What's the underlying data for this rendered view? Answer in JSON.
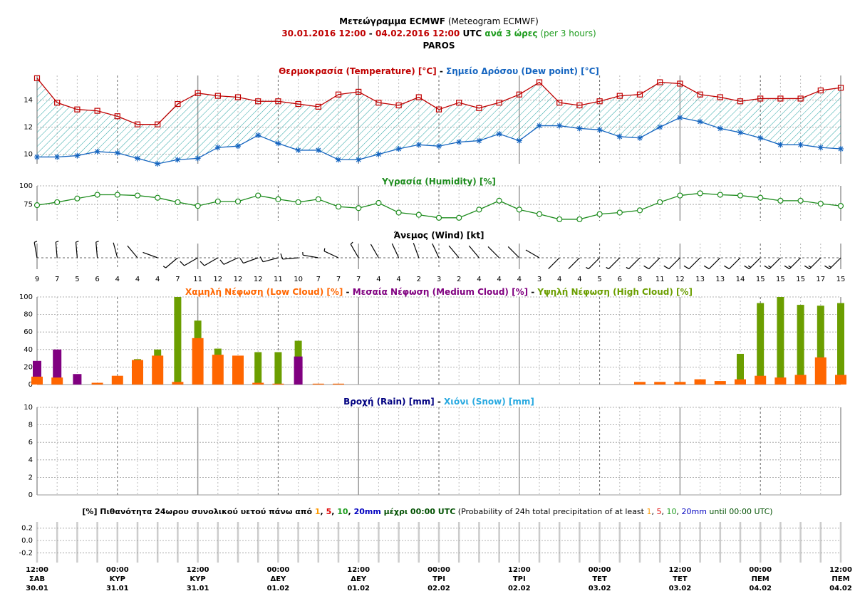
{
  "header": {
    "lines": [
      [
        {
          "text": "Μετεώγραμμα ECMWF",
          "color": "#000000",
          "bold": true
        },
        {
          "text": " (Meteogram ECMWF)",
          "color": "#000000",
          "bold": false
        }
      ],
      [
        {
          "text": "30.01.2016 12:00",
          "color": "#c00000",
          "bold": true
        },
        {
          "text": " - ",
          "color": "#000000",
          "bold": true
        },
        {
          "text": "04.02.2016 12:00",
          "color": "#c00000",
          "bold": true
        },
        {
          "text": " UTC",
          "color": "#000000",
          "bold": true
        },
        {
          "text": " ανά 3 ώρες",
          "color": "#1e9c1e",
          "bold": true
        },
        {
          "text": " (per 3 hours)",
          "color": "#1e9c1e",
          "bold": false
        }
      ],
      [
        {
          "text": "PAROS",
          "color": "#000000",
          "bold": true
        }
      ]
    ]
  },
  "time_axis": [
    {
      "time": "12:00",
      "day": "ΣΑΒ",
      "date": "30.01"
    },
    {
      "time": "00:00",
      "day": "ΚΥΡ",
      "date": "31.01"
    },
    {
      "time": "12:00",
      "day": "ΚΥΡ",
      "date": "31.01"
    },
    {
      "time": "00:00",
      "day": "ΔΕΥ",
      "date": "01.02"
    },
    {
      "time": "12:00",
      "day": "ΔΕΥ",
      "date": "01.02"
    },
    {
      "time": "00:00",
      "day": "ΤΡΙ",
      "date": "02.02"
    },
    {
      "time": "12:00",
      "day": "ΤΡΙ",
      "date": "02.02"
    },
    {
      "time": "00:00",
      "day": "ΤΕΤ",
      "date": "03.02"
    },
    {
      "time": "12:00",
      "day": "ΤΕΤ",
      "date": "03.02"
    },
    {
      "time": "00:00",
      "day": "ΠΕΜ",
      "date": "04.02"
    },
    {
      "time": "12:00",
      "day": "ΠΕΜ",
      "date": "04.02"
    }
  ],
  "chart_data": [
    {
      "type": "line",
      "separator": " - ",
      "ylim": [
        9.3,
        15.8
      ],
      "yticks": [
        10,
        12,
        14
      ],
      "grid": true,
      "fill_between": "#2aa5a5",
      "series": [
        {
          "name": "Θερμοκρασία (Temperature) [°C]",
          "color": "#c00000",
          "marker": "square",
          "values": [
            15.6,
            13.8,
            13.3,
            13.2,
            12.8,
            12.2,
            12.2,
            13.7,
            14.5,
            14.3,
            14.2,
            13.9,
            13.9,
            13.7,
            13.5,
            14.4,
            14.6,
            13.8,
            13.6,
            14.2,
            13.3,
            13.8,
            13.4,
            13.8,
            14.4,
            15.3,
            13.8,
            13.6,
            13.9,
            14.3,
            14.4,
            15.3,
            15.2,
            14.4,
            14.2,
            13.9,
            14.1,
            14.1,
            14.1,
            14.7,
            14.9
          ]
        },
        {
          "name": "Σημείο Δρόσου (Dew point) [°C]",
          "color": "#1565c0",
          "marker": "star",
          "values": [
            9.8,
            9.8,
            9.9,
            10.2,
            10.1,
            9.7,
            9.3,
            9.6,
            9.7,
            10.5,
            10.6,
            11.4,
            10.8,
            10.3,
            10.3,
            9.6,
            9.6,
            10.0,
            10.4,
            10.7,
            10.6,
            10.9,
            11.0,
            11.5,
            11.0,
            12.1,
            12.1,
            11.9,
            11.8,
            11.3,
            11.2,
            12.0,
            12.7,
            12.4,
            11.9,
            11.6,
            11.2,
            10.7,
            10.7,
            10.5,
            10.4
          ]
        }
      ]
    },
    {
      "type": "line",
      "ylim": [
        53,
        100
      ],
      "yticks": [
        75,
        100
      ],
      "grid": true,
      "series": [
        {
          "name": "Υγρασία (Humidity) [%]",
          "color": "#1e8c1e",
          "marker": "circle",
          "values": [
            74,
            78,
            83,
            88,
            88,
            87,
            84,
            78,
            73,
            79,
            79,
            87,
            82,
            78,
            82,
            72,
            70,
            77,
            64,
            61,
            57,
            57,
            68,
            80,
            68,
            62,
            55,
            55,
            62,
            64,
            67,
            78,
            87,
            90,
            88,
            87,
            84,
            80,
            80,
            76,
            73
          ]
        }
      ]
    },
    {
      "type": "wind",
      "title": "Άνεμος (Wind) [kt]",
      "color": "#000000",
      "values": [
        9,
        7,
        5,
        6,
        4,
        4,
        4,
        7,
        11,
        12,
        12,
        12,
        11,
        10,
        7,
        7,
        7,
        4,
        4,
        2,
        3,
        2,
        4,
        4,
        4,
        3,
        4,
        4,
        5,
        6,
        8,
        11,
        12,
        13,
        13,
        14,
        15,
        15,
        15,
        17,
        15
      ],
      "directions": [
        350,
        355,
        355,
        355,
        345,
        320,
        290,
        230,
        240,
        240,
        245,
        250,
        255,
        265,
        280,
        295,
        330,
        330,
        335,
        340,
        335,
        320,
        320,
        315,
        315,
        300,
        225,
        225,
        225,
        225,
        225,
        225,
        225,
        225,
        225,
        225,
        225,
        225,
        225,
        225,
        225
      ]
    },
    {
      "type": "bar",
      "separator": " - ",
      "ylim": [
        0,
        100
      ],
      "yticks": [
        0,
        20,
        40,
        60,
        80,
        100
      ],
      "grid": true,
      "series": [
        {
          "name": "Χαμηλή Νέφωση (Low Cloud) [%]",
          "color": "#ff6600",
          "values": [
            9,
            8,
            0,
            2,
            10,
            28,
            33,
            3,
            53,
            34,
            33,
            2,
            1,
            0,
            1,
            1,
            0,
            0,
            0,
            0,
            0,
            0,
            0,
            0,
            0,
            0,
            0,
            0,
            0,
            0,
            3,
            3,
            3,
            6,
            4,
            6,
            10,
            8,
            11,
            31,
            11
          ]
        },
        {
          "name": "Μεσαία Νέφωση (Medium Cloud) [%]",
          "color": "#800080",
          "values": [
            27,
            40,
            12,
            0,
            0,
            0,
            0,
            0,
            0,
            0,
            0,
            0,
            0,
            32,
            0,
            0,
            0,
            0,
            0,
            0,
            0,
            0,
            0,
            0,
            0,
            0,
            0,
            0,
            0,
            0,
            0,
            0,
            0,
            0,
            0,
            0,
            0,
            0,
            0,
            0,
            0
          ]
        },
        {
          "name": "Υψηλή Νέφωση (High Cloud) [%]",
          "color": "#6b9e00",
          "values": [
            0,
            0,
            0,
            0,
            0,
            29,
            40,
            100,
            73,
            41,
            0,
            37,
            37,
            50,
            0,
            0,
            0,
            0,
            0,
            0,
            0,
            0,
            0,
            0,
            0,
            0,
            0,
            0,
            0,
            0,
            0,
            0,
            0,
            0,
            0,
            35,
            93,
            100,
            91,
            90,
            93
          ]
        }
      ]
    },
    {
      "type": "bar",
      "separator": " - ",
      "ylim": [
        0,
        10
      ],
      "yticks": [
        0,
        2,
        4,
        6,
        8,
        10
      ],
      "grid": true,
      "series": [
        {
          "name": "Βροχή (Rain) [mm]",
          "color": "#000080",
          "values": [
            0,
            0,
            0,
            0,
            0,
            0,
            0,
            0,
            0,
            0,
            0,
            0,
            0,
            0,
            0,
            0,
            0,
            0,
            0,
            0,
            0,
            0,
            0,
            0,
            0,
            0,
            0,
            0,
            0,
            0,
            0,
            0,
            0,
            0,
            0,
            0,
            0,
            0,
            0,
            0,
            0
          ]
        },
        {
          "name": "Χιόνι (Snow) [mm]",
          "color": "#29a9e0",
          "values": [
            0,
            0,
            0,
            0,
            0,
            0,
            0,
            0,
            0,
            0,
            0,
            0,
            0,
            0,
            0,
            0,
            0,
            0,
            0,
            0,
            0,
            0,
            0,
            0,
            0,
            0,
            0,
            0,
            0,
            0,
            0,
            0,
            0,
            0,
            0,
            0,
            0,
            0,
            0,
            0,
            0
          ]
        }
      ]
    },
    {
      "type": "probability",
      "ylim": [
        -0.3,
        0.3
      ],
      "yticks": [
        {
          "value": 0.2,
          "label": "0.2"
        },
        {
          "value": 0.0,
          "label": "0.0"
        },
        {
          "value": -0.2,
          "label": "-0.2"
        }
      ],
      "title_parts": [
        {
          "text": "[%] Πιθανότητα 24ωρου συνολικού υετού πάνω από ",
          "color": "#000000",
          "bold": true
        },
        {
          "text": "1",
          "color": "#ff9900",
          "bold": true
        },
        {
          "text": ", ",
          "color": "#000000",
          "bold": true
        },
        {
          "text": "5",
          "color": "#e00000",
          "bold": true
        },
        {
          "text": ", ",
          "color": "#000000",
          "bold": true
        },
        {
          "text": "10",
          "color": "#1e9c1e",
          "bold": true
        },
        {
          "text": ", ",
          "color": "#000000",
          "bold": true
        },
        {
          "text": "20mm",
          "color": "#0000c0",
          "bold": true
        },
        {
          "text": " μέχρι 00:00 UTC",
          "color": "#005000",
          "bold": true
        },
        {
          "text": " (Probability of 24h total precipitation of at least ",
          "color": "#000000",
          "bold": false
        },
        {
          "text": "1",
          "color": "#ff9900",
          "bold": false
        },
        {
          "text": ", ",
          "color": "#000000",
          "bold": false
        },
        {
          "text": "5",
          "color": "#e00000",
          "bold": false
        },
        {
          "text": ", ",
          "color": "#000000",
          "bold": false
        },
        {
          "text": "10",
          "color": "#1e9c1e",
          "bold": false
        },
        {
          "text": ", ",
          "color": "#000000",
          "bold": false
        },
        {
          "text": "20mm",
          "color": "#0000c0",
          "bold": false
        },
        {
          "text": " until 00:00 UTC)",
          "color": "#005000",
          "bold": false
        }
      ]
    }
  ]
}
